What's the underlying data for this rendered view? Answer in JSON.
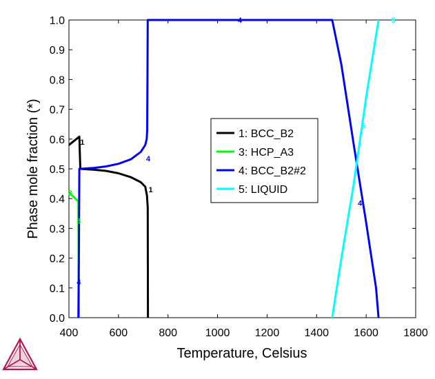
{
  "chart_data": {
    "type": "line",
    "title": "",
    "xlabel": "Temperature, Celsius",
    "ylabel": "Phase mole fraction (*)",
    "xlim": [
      400,
      1800
    ],
    "ylim": [
      0.0,
      1.0
    ],
    "x_ticks": [
      "400",
      "600",
      "800",
      "1000",
      "1200",
      "1400",
      "1600",
      "1800"
    ],
    "y_ticks": [
      "0.0",
      "0.1",
      "0.2",
      "0.3",
      "0.4",
      "0.5",
      "0.6",
      "0.7",
      "0.8",
      "0.9",
      "1.0"
    ],
    "grid": false,
    "legend_position": "center-right",
    "series": [
      {
        "name": "1: BCC_B2",
        "color": "#000000",
        "segments": [
          [
            [
              400,
              0.58
            ],
            [
              415,
              0.59
            ],
            [
              430,
              0.6
            ],
            [
              442,
              0.608
            ],
            [
              446,
              0.5
            ],
            [
              460,
              0.499
            ],
            [
              500,
              0.497
            ],
            [
              550,
              0.493
            ],
            [
              600,
              0.485
            ],
            [
              650,
              0.472
            ],
            [
              690,
              0.455
            ],
            [
              708,
              0.44
            ],
            [
              715,
              0.41
            ],
            [
              718,
              0.37
            ],
            [
              719,
              0.0
            ]
          ]
        ],
        "point_labels": [
          {
            "text": "1",
            "x": 454,
            "y": 0.59
          },
          {
            "text": "1",
            "x": 730,
            "y": 0.43
          }
        ]
      },
      {
        "name": "3: HCP_A3",
        "color": "#00ff00",
        "segments": [
          [
            [
              400,
              0.42
            ],
            [
              420,
              0.405
            ],
            [
              438,
              0.39
            ],
            [
              440,
              0.0
            ]
          ]
        ],
        "point_labels": [
          {
            "text": "3",
            "x": 405,
            "y": 0.42
          },
          {
            "text": "3",
            "x": 440,
            "y": 0.325
          }
        ]
      },
      {
        "name": "4: BCC_B2#2",
        "color": "#0000ff",
        "segments": [
          [
            [
              438,
              0.0
            ],
            [
              440,
              0.2
            ],
            [
              442,
              0.5
            ],
            [
              446,
              0.5
            ],
            [
              500,
              0.503
            ],
            [
              550,
              0.508
            ],
            [
              600,
              0.517
            ],
            [
              650,
              0.532
            ],
            [
              690,
              0.557
            ],
            [
              708,
              0.58
            ],
            [
              714,
              0.6
            ],
            [
              716,
              0.63
            ],
            [
              717,
              0.8
            ],
            [
              718,
              1.0
            ],
            [
              1463,
              1.0
            ],
            [
              1500,
              0.85
            ],
            [
              1550,
              0.58
            ],
            [
              1600,
              0.32
            ],
            [
              1640,
              0.1
            ],
            [
              1650,
              0.0
            ]
          ]
        ],
        "point_labels": [
          {
            "text": "4",
            "x": 1090,
            "y": 1.0
          },
          {
            "text": "4",
            "x": 720,
            "y": 0.535
          },
          {
            "text": "4",
            "x": 1575,
            "y": 0.385
          },
          {
            "text": "4",
            "x": 440,
            "y": 0.12
          }
        ]
      },
      {
        "name": "5: LIQUID",
        "color": "#00ffff",
        "segments": [
          [
            [
              1463,
              0.0
            ],
            [
              1500,
              0.2
            ],
            [
              1550,
              0.45
            ],
            [
              1600,
              0.74
            ],
            [
              1650,
              1.0
            ]
          ]
        ],
        "point_labels": [
          {
            "text": "5",
            "x": 1590,
            "y": 0.645
          },
          {
            "text": "5",
            "x": 1710,
            "y": 1.0
          }
        ]
      }
    ]
  },
  "logo": {
    "name": "thermo-calc-logo",
    "color": "#b5174a"
  }
}
